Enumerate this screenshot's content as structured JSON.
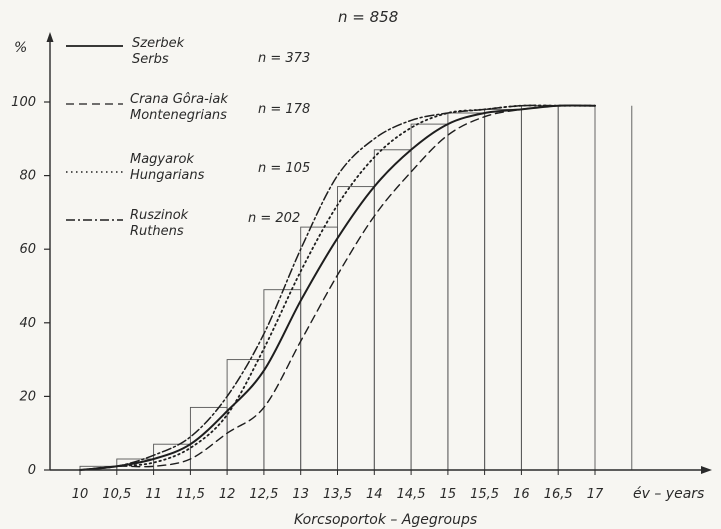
{
  "chart_data": {
    "type": "line",
    "title": "n = 858",
    "ylabel": "%",
    "xlabel": "Korcsoportok – Agegroups",
    "x_unit_label": "év – years",
    "ylim": [
      0,
      100
    ],
    "xlim": [
      10,
      17
    ],
    "x_ticks": [
      10,
      10.5,
      11,
      11.5,
      12,
      12.5,
      13,
      13.5,
      14,
      14.5,
      15,
      15.5,
      16,
      16.5,
      17
    ],
    "x_tick_labels": [
      "10",
      "10,5",
      "11",
      "11,5",
      "12",
      "12,5",
      "13",
      "13,5",
      "14",
      "14,5",
      "15",
      "15,5",
      "16",
      "16,5",
      "17"
    ],
    "y_ticks": [
      0,
      20,
      40,
      60,
      80,
      100
    ],
    "y_tick_labels": [
      "0",
      "20",
      "40",
      "60",
      "80",
      "100"
    ],
    "histogram_bars": {
      "x": [
        10.5,
        11,
        11.5,
        12,
        12.5,
        13,
        13.5,
        14,
        14.5,
        15,
        15.5,
        16,
        16.5,
        17
      ],
      "values": [
        1,
        3,
        7,
        17,
        30,
        49,
        66,
        77,
        87,
        94,
        97,
        98,
        99,
        99
      ]
    },
    "series": [
      {
        "name_hu": "Szerbek",
        "name_en": "Serbs",
        "n_label": "n = 373",
        "style": "solid",
        "x": [
          10,
          10.5,
          11,
          11.5,
          12,
          12.5,
          13,
          13.5,
          14,
          14.5,
          15,
          15.5,
          16,
          16.5,
          17
        ],
        "values": [
          0,
          1,
          3,
          7,
          16,
          27,
          46,
          63,
          77,
          87,
          94,
          97,
          98,
          99,
          99
        ]
      },
      {
        "name_hu": "Crana Gôra-iak",
        "name_en": "Montenegrians",
        "n_label": "n = 178",
        "style": "dashed",
        "x": [
          10,
          10.5,
          11,
          11.5,
          12,
          12.5,
          13,
          13.5,
          14,
          14.5,
          15,
          15.5,
          16,
          16.5,
          17
        ],
        "values": [
          0,
          1,
          1,
          3,
          10,
          17,
          35,
          53,
          69,
          81,
          91,
          96,
          98,
          99,
          99
        ]
      },
      {
        "name_hu": "Magyarok",
        "name_en": "Hungarians",
        "n_label": "n = 105",
        "style": "dotted",
        "x": [
          10,
          10.5,
          11,
          11.5,
          12,
          12.5,
          13,
          13.5,
          14,
          14.5,
          15,
          15.5,
          16,
          16.5,
          17
        ],
        "values": [
          0,
          1,
          2,
          6,
          15,
          33,
          54,
          72,
          85,
          93,
          97,
          98,
          99,
          99,
          99
        ]
      },
      {
        "name_hu": "Ruszinok",
        "name_en": "Ruthens",
        "n_label": "n = 202",
        "style": "dashdot",
        "x": [
          10,
          10.5,
          11,
          11.5,
          12,
          12.5,
          13,
          13.5,
          14,
          14.5,
          15,
          15.5,
          16,
          16.5,
          17
        ],
        "values": [
          0,
          1,
          4,
          9,
          20,
          37,
          60,
          80,
          90,
          95,
          97,
          98,
          99,
          99,
          99
        ]
      }
    ],
    "grid": false,
    "legend_position": "top-left"
  }
}
